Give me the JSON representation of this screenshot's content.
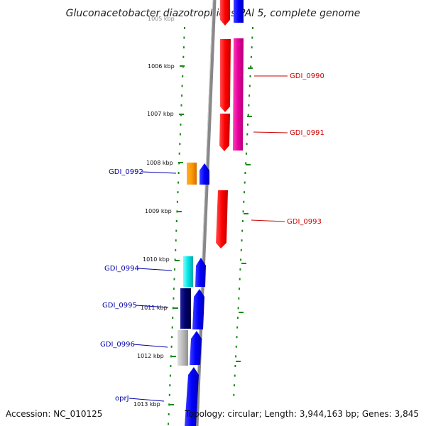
{
  "title": "Gluconacetobacter diazotrophicus PAl 5, complete genome",
  "footer": {
    "accession": "Accession: NC_010125",
    "topology": "Topology: circular; Length: 3,944,163 bp; Genes: 3,845"
  },
  "ticks": [
    {
      "label": "1006 kbp",
      "kb": 1006
    },
    {
      "label": "1007 kbp",
      "kb": 1007
    },
    {
      "label": "1008 kbp",
      "kb": 1008
    },
    {
      "label": "1009 kbp",
      "kb": 1009
    },
    {
      "label": "1010 kbp",
      "kb": 1010
    },
    {
      "label": "1011 kbp",
      "kb": 1011
    },
    {
      "label": "1012 kbp",
      "kb": 1012
    },
    {
      "label": "1013 kbp",
      "kb": 1013
    }
  ],
  "gene_labels": [
    {
      "name": "GDI_0990",
      "strand": "forward",
      "color": "#cc0000"
    },
    {
      "name": "GDI_0991",
      "strand": "forward",
      "color": "#cc0000"
    },
    {
      "name": "GDI_0993",
      "strand": "forward",
      "color": "#cc0000"
    },
    {
      "name": "GDI_0992",
      "strand": "reverse",
      "color": "#0000aa"
    },
    {
      "name": "GDI_0994",
      "strand": "reverse",
      "color": "#0000aa"
    },
    {
      "name": "GDI_0995",
      "strand": "reverse",
      "color": "#0000aa"
    },
    {
      "name": "GDI_0996",
      "strand": "reverse",
      "color": "#0000aa"
    },
    {
      "name": "oprJ",
      "strand": "reverse",
      "color": "#0000aa"
    }
  ],
  "colors": {
    "forward_cds": "#ff0000",
    "reverse_cds": "#0000ff",
    "forward_orf": "#e6009a",
    "tick_marks": "#1a8a1a",
    "backbone": "#888888",
    "cog_orange": "#ff9900",
    "cog_cyan": "#00e5e5",
    "cog_navy": "#000066",
    "cog_grey": "#bbbbbb"
  }
}
